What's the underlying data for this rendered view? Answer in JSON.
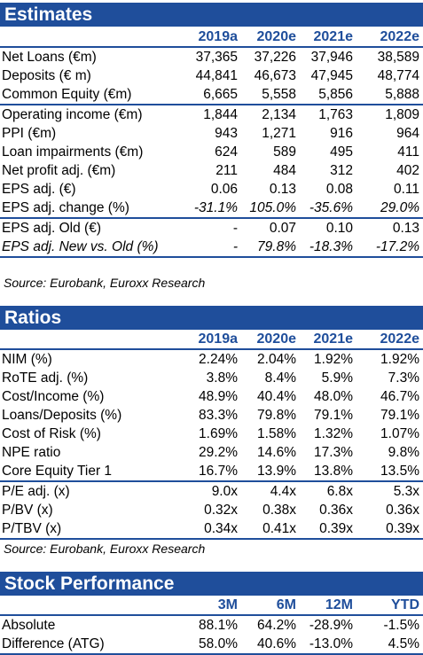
{
  "estimates": {
    "title": "Estimates",
    "columns": [
      "2019a",
      "2020e",
      "2021e",
      "2022e"
    ],
    "rows": [
      {
        "label": "Net Loans (€m)",
        "values": [
          "37,365",
          "37,226",
          "37,946",
          "38,589"
        ]
      },
      {
        "label": "Deposits (€ m)",
        "values": [
          "44,841",
          "46,673",
          "47,945",
          "48,774"
        ]
      },
      {
        "label": "Common Equity (€m)",
        "values": [
          "6,665",
          "5,558",
          "5,856",
          "5,888"
        ]
      },
      {
        "label": "Operating income (€m)",
        "values": [
          "1,844",
          "2,134",
          "1,763",
          "1,809"
        ]
      },
      {
        "label": "PPI (€m)",
        "values": [
          "943",
          "1,271",
          "916",
          "964"
        ]
      },
      {
        "label": "Loan impairments (€m)",
        "values": [
          "624",
          "589",
          "495",
          "411"
        ]
      },
      {
        "label": "Net profit adj. (€m)",
        "values": [
          "211",
          "484",
          "312",
          "402"
        ]
      },
      {
        "label": "EPS adj. (€)",
        "values": [
          "0.06",
          "0.13",
          "0.08",
          "0.11"
        ]
      },
      {
        "label": "EPS adj. change (%)",
        "values": [
          "-31.1%",
          "105.0%",
          "-35.6%",
          "29.0%"
        ]
      },
      {
        "label": "EPS adj. Old (€)",
        "values": [
          "-",
          "0.07",
          "0.10",
          "0.13"
        ]
      },
      {
        "label": "EPS adj. New vs. Old (%)",
        "values": [
          "-",
          "79.8%",
          "-18.3%",
          "-17.2%"
        ]
      }
    ],
    "source": "Source: Eurobank, Euroxx Research"
  },
  "ratios": {
    "title": "Ratios",
    "columns": [
      "2019a",
      "2020e",
      "2021e",
      "2022e"
    ],
    "rows": [
      {
        "label": "NIM (%)",
        "values": [
          "2.24%",
          "2.04%",
          "1.92%",
          "1.92%"
        ]
      },
      {
        "label": "RoTE adj. (%)",
        "values": [
          "3.8%",
          "8.4%",
          "5.9%",
          "7.3%"
        ]
      },
      {
        "label": "Cost/Income (%)",
        "values": [
          "48.9%",
          "40.4%",
          "48.0%",
          "46.7%"
        ]
      },
      {
        "label": "Loans/Deposits (%)",
        "values": [
          "83.3%",
          "79.8%",
          "79.1%",
          "79.1%"
        ]
      },
      {
        "label": "Cost of Risk (%)",
        "values": [
          "1.69%",
          "1.58%",
          "1.32%",
          "1.07%"
        ]
      },
      {
        "label": "NPE ratio",
        "values": [
          "29.2%",
          "14.6%",
          "17.3%",
          "9.8%"
        ]
      },
      {
        "label": "Core Equity Tier 1",
        "values": [
          "16.7%",
          "13.9%",
          "13.8%",
          "13.5%"
        ]
      },
      {
        "label": "P/E adj. (x)",
        "values": [
          "9.0x",
          "4.4x",
          "6.8x",
          "5.3x"
        ]
      },
      {
        "label": "P/BV (x)",
        "values": [
          "0.32x",
          "0.38x",
          "0.36x",
          "0.36x"
        ]
      },
      {
        "label": "P/TBV (x)",
        "values": [
          "0.34x",
          "0.41x",
          "0.39x",
          "0.39x"
        ]
      }
    ],
    "source": "Source: Eurobank, Euroxx Research"
  },
  "stock": {
    "title": "Stock Performance",
    "columns": [
      "3M",
      "6M",
      "12M",
      "YTD"
    ],
    "rows": [
      {
        "label": "Absolute",
        "values": [
          "88.1%",
          "64.2%",
          "-28.9%",
          "-1.5%"
        ]
      },
      {
        "label": "Difference (ATG)",
        "values": [
          "58.0%",
          "40.6%",
          "-13.0%",
          "4.5%"
        ]
      }
    ]
  },
  "colors": {
    "accent": "#1f4e9b"
  }
}
